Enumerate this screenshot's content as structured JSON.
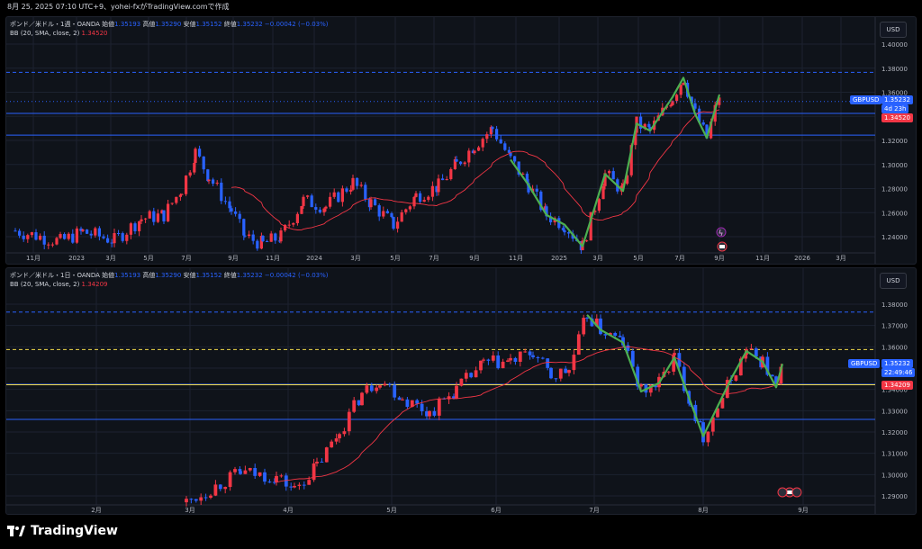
{
  "header": {
    "text": "8月 25, 2025 07:10 UTC+9、yohei-fxがTradingView.comで作成"
  },
  "colors": {
    "up": "#f23645",
    "down": "#2962ff",
    "bb_mid": "#f23645",
    "bb_band": "#4caf50",
    "level": "#2962ff",
    "dashed": "#2962ff",
    "yellow": "#f0d84a",
    "bg": "#0f131a",
    "grid": "#1c2230"
  },
  "charts": [
    {
      "title_name": "ポンド／米ドル・1週・OANDA",
      "ohlc": {
        "open_label": "始値",
        "open": "1.35193",
        "high_label": "高値",
        "high": "1.35290",
        "low_label": "安値",
        "low": "1.35152",
        "close_label": "終値",
        "close": "1.35232",
        "change": "−0.00042 (−0.03%)"
      },
      "bb_label": "BB (20, SMA, close, 2)",
      "bb_value": "1.34520",
      "currency": "USD",
      "symbol": "GBPUSD",
      "price_tag": "1.35232",
      "countdown": "4d 23h",
      "bb_tag": "1.34520",
      "price_ticks": [
        "1.40000",
        "1.38000",
        "1.36000",
        "1.34000",
        "1.32000",
        "1.30000",
        "1.28000",
        "1.26000",
        "1.24000"
      ],
      "time_labels": [
        "11月",
        "2023",
        "3月",
        "5月",
        "7月",
        "9月",
        "11月",
        "2024",
        "3月",
        "5月",
        "7月",
        "9月",
        "11月",
        "2025",
        "3月",
        "5月",
        "7月",
        "9月",
        "11月",
        "2026",
        "3月"
      ]
    },
    {
      "title_name": "ポンド／米ドル・1日・OANDA",
      "ohlc": {
        "open_label": "始値",
        "open": "1.35193",
        "high_label": "高値",
        "high": "1.35290",
        "low_label": "安値",
        "low": "1.35152",
        "close_label": "終値",
        "close": "1.35232",
        "change": "−0.00042 (−0.03%)"
      },
      "bb_label": "BB (20, SMA, close, 2)",
      "bb_value": "1.34209",
      "currency": "USD",
      "symbol": "GBPUSD",
      "price_tag": "1.35232",
      "countdown": "22:49:46",
      "bb_tag": "1.34209",
      "price_ticks": [
        "1.38000",
        "1.37000",
        "1.36000",
        "1.35000",
        "1.34000",
        "1.33000",
        "1.32000",
        "1.31000",
        "1.30000",
        "1.29000"
      ],
      "time_labels": [
        "2月",
        "3月",
        "4月",
        "5月",
        "6月",
        "7月",
        "8月",
        "9月"
      ]
    }
  ],
  "footer": {
    "brand": "TradingView"
  }
}
